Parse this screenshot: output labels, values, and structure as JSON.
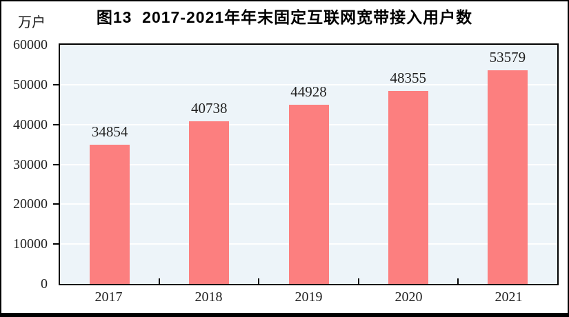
{
  "figure": {
    "unit_label": "万户",
    "title": "图13  2017-2021年年末固定互联网宽带接入用户数"
  },
  "chart_data": {
    "type": "bar",
    "title": "图13  2017-2021年年末固定互联网宽带接入用户数",
    "unit": "万户",
    "categories": [
      "2017",
      "2018",
      "2019",
      "2020",
      "2021"
    ],
    "values": [
      34854,
      40738,
      44928,
      48355,
      53579
    ],
    "data_labels": [
      "34854",
      "40738",
      "44928",
      "48355",
      "53579"
    ],
    "ylim": [
      0,
      60000
    ],
    "yticks": [
      0,
      10000,
      20000,
      30000,
      40000,
      50000,
      60000
    ],
    "ytick_labels": [
      "0",
      "10000",
      "20000",
      "30000",
      "40000",
      "50000",
      "60000"
    ],
    "xlabel": "",
    "ylabel": "万户",
    "grid": "horizontal",
    "legend_position": "none",
    "colors": {
      "bar": "#fc7f7f",
      "plot_background": "#edf4f9",
      "gridline": "#ffffff",
      "text": "#1f1f1f",
      "border": "#000000"
    }
  }
}
